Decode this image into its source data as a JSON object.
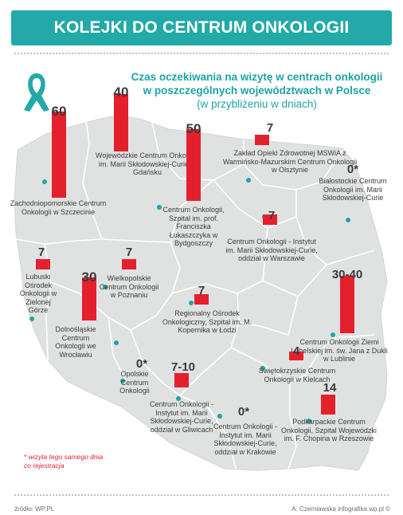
{
  "banner": {
    "title": "KOLEJKI DO CENTRUM ONKOLOGII"
  },
  "heading": {
    "line1": "Czas oczekiwania na wizytę w centrach onkologii",
    "line2": "w poszczególnych województwach w Polsce",
    "line3": "(w przybliżeniu w dniach)"
  },
  "note": {
    "text": "* wizyta tego samego dnia co rejestracja"
  },
  "footer": {
    "source": "źródło: WP.PL",
    "credit": "A. Czerniawska infografika.wp.pl ©"
  },
  "colors": {
    "accent": "#22a9a8",
    "bar": "#e5202d",
    "map": "#e0e2e2",
    "dot": "#1fa4a3"
  },
  "icons": {
    "ribbon": "awareness-ribbon-icon"
  },
  "chart_data": {
    "type": "bar",
    "title": "KOLEJKI DO CENTRUM ONKOLOGII",
    "unit": "dni",
    "centers": [
      {
        "label": "7",
        "value": 7,
        "name": "Zakład Opieki Zdrowotnej MSWiA z Warmińsko-Mazurskim Centrum Onkologii w Olsztynie"
      },
      {
        "label": "0*",
        "value": 0,
        "name": "Białostockie Centrum Onkologii im. Marii Skłodowskiej-Curie"
      },
      {
        "label": "40",
        "value": 40,
        "name": "Wojewódzkie Centrum Onkologii im. Marii Skłodowskiej-Curie w Gdańsku"
      },
      {
        "label": "60",
        "value": 60,
        "name": "Zachodniopomorskie Centrum Onkologii w Szczecinie"
      },
      {
        "label": "50",
        "value": 50,
        "name": "Centrum Onkologii, Szpital im. prof. Franciszka Łukaszczyka w Bydgoszczy"
      },
      {
        "label": "7",
        "value": 7,
        "name": "Centrum Onkologii - Instytut im. Marii Skłodowskiej-Curie, oddział w Warszawie"
      },
      {
        "label": "7",
        "value": 7,
        "name": "Lubuski Ośrodek Onkologii w Zielonej Górze"
      },
      {
        "label": "7",
        "value": 7,
        "name": "Wielkopolskie Centrum Onkologii w Poznaniu"
      },
      {
        "label": "30",
        "value": 30,
        "name": "Dolnośląskie Centrum Onkologii we Wrocławiu"
      },
      {
        "label": "7",
        "value": 7,
        "name": "Regionalny Ośrodek Onkologiczny, Szpital im. M. Kopernika w Łodzi"
      },
      {
        "label": "30-40",
        "value": 40,
        "name": "Centrum Onkologii Ziemi Lubelskiej im. św. Jana z Dukli w Lublinie"
      },
      {
        "label": "0*",
        "value": 0,
        "name": "Opolskie Centrum Onkologii"
      },
      {
        "label": "7-10",
        "value": 10,
        "name": "Centrum Onkologii - Instytut im. Marii Skłodowskiej-Curie, oddział w Gliwicach"
      },
      {
        "label": "4",
        "value": 4,
        "name": "Świętokrzyskie Centrum Onkologii w Kielcach"
      },
      {
        "label": "0*",
        "value": 0,
        "name": "Centrum Onkologii - Instytut im. Marii Skłodowskiej-Curie, oddział w Krakowie"
      },
      {
        "label": "14",
        "value": 14,
        "name": "Podkarpackie Centrum Onkologii, Szpital Wojewódzki im. F. Chopina w Rzeszowie"
      }
    ]
  }
}
